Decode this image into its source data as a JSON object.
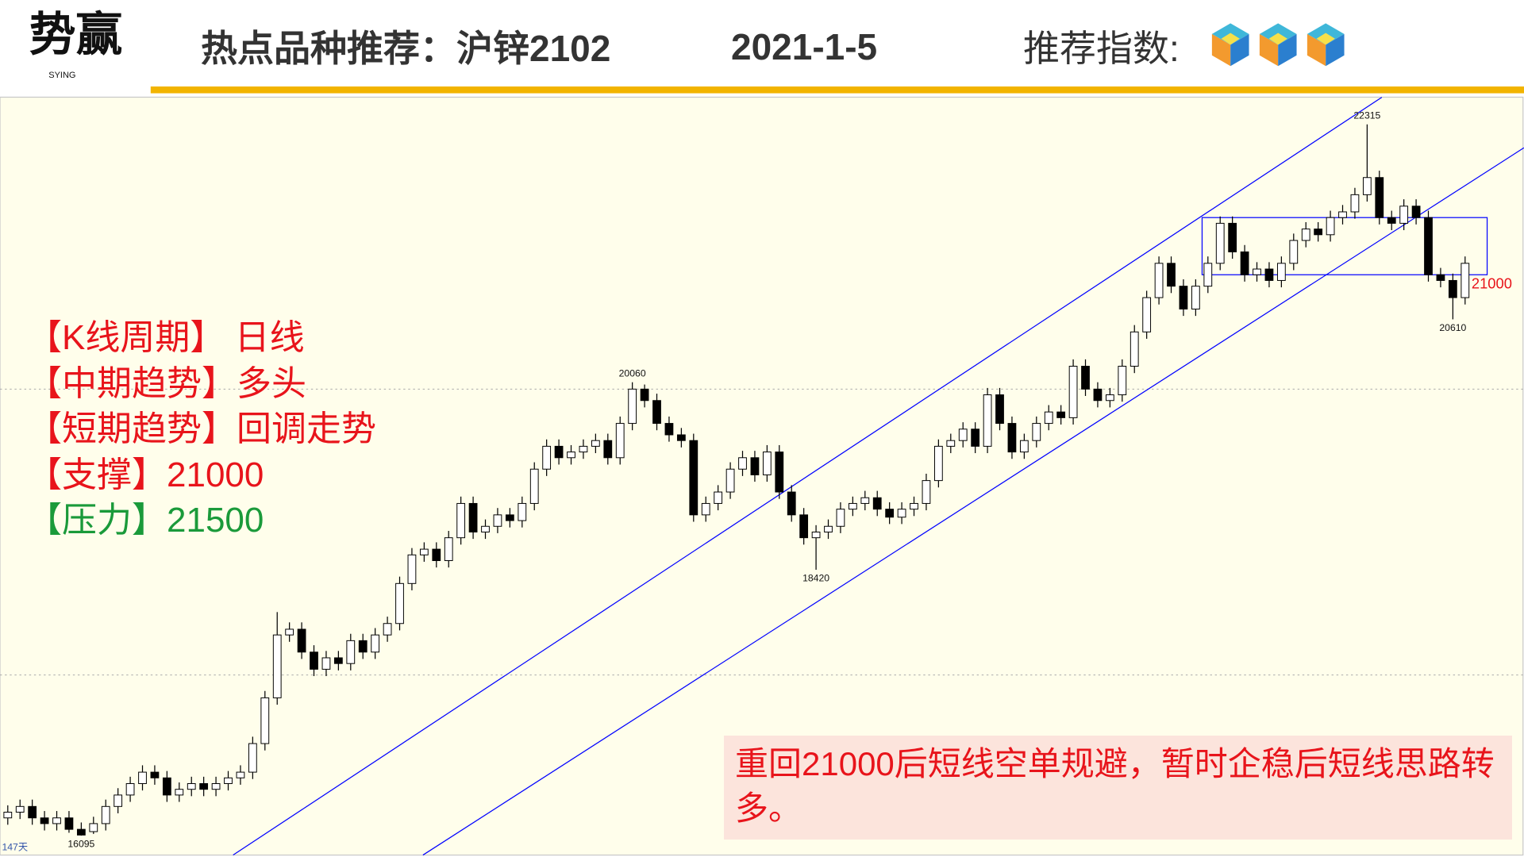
{
  "header": {
    "logo": "势赢",
    "logo_sub": "SYING",
    "title": "热点品种推荐：沪锌2102",
    "date": "2021-1-5",
    "rating_label": "推荐指数:",
    "rating": 3
  },
  "panel": [
    "【K线周期】 日线",
    "【中期趋势】多头",
    "【短期趋势】回调走势",
    "【支撑】21000",
    "【压力】21500"
  ],
  "note": "重回21000后短线空单规避，暂时企稳后短线思路转多。",
  "chart_data": {
    "type": "candlestick",
    "period_label": "147天",
    "open": [
      16250,
      16300,
      16350,
      16250,
      16200,
      16250,
      16150,
      16130,
      16200,
      16350,
      16450,
      16550,
      16650,
      16600,
      16450,
      16500,
      16550,
      16500,
      16550,
      16600,
      16650,
      16900,
      17300,
      17850,
      17900,
      17700,
      17550,
      17650,
      17600,
      17800,
      17700,
      17850,
      17950,
      18300,
      18550,
      18600,
      18500,
      18700,
      19000,
      18750,
      18800,
      18900,
      18850,
      19000,
      19300,
      19500,
      19400,
      19450,
      19500,
      19550,
      19400,
      19700,
      20000,
      19900,
      19700,
      19600,
      19550,
      18900,
      19000,
      19100,
      19300,
      19400,
      19250,
      19450,
      19100,
      18900,
      18700,
      18750,
      18800,
      18950,
      19000,
      19050,
      18950,
      18880,
      18950,
      19000,
      19200,
      19500,
      19550,
      19650,
      19500,
      19950,
      19700,
      19450,
      19550,
      19700,
      19800,
      19750,
      20200,
      20000,
      19900,
      19950,
      20200,
      20500,
      20800,
      21100,
      20900,
      20700,
      20900,
      21100,
      21450,
      21200,
      21000,
      21050,
      20950,
      21100,
      21300,
      21400,
      21350,
      21500,
      21550,
      21700,
      21850,
      21500,
      21450,
      21600,
      21500,
      21000,
      20950,
      20800
    ],
    "high": [
      16360,
      16410,
      16410,
      16310,
      16310,
      16310,
      16210,
      16260,
      16410,
      16510,
      16610,
      16710,
      16710,
      16660,
      16560,
      16610,
      16610,
      16610,
      16660,
      16710,
      16960,
      17360,
      18050,
      17960,
      17960,
      17760,
      17710,
      17710,
      17860,
      17860,
      17910,
      18010,
      18360,
      18610,
      18660,
      18660,
      18760,
      19060,
      19060,
      18860,
      18960,
      18960,
      19060,
      19360,
      19560,
      19560,
      19510,
      19560,
      19610,
      19610,
      19760,
      20060,
      20040,
      19960,
      19760,
      19660,
      19610,
      19060,
      19160,
      19360,
      19460,
      19460,
      19510,
      19510,
      19160,
      18960,
      18810,
      18860,
      19010,
      19060,
      19110,
      19110,
      19010,
      19010,
      19060,
      19260,
      19560,
      19610,
      19710,
      19710,
      20010,
      20010,
      19760,
      19610,
      19760,
      19860,
      19860,
      20260,
      20260,
      20060,
      20010,
      20260,
      20560,
      20860,
      21160,
      21160,
      20960,
      20960,
      21160,
      21510,
      21510,
      21260,
      21110,
      21110,
      21160,
      21360,
      21460,
      21460,
      21560,
      21610,
      21760,
      22315,
      21910,
      21560,
      21660,
      21660,
      21560,
      21060,
      21010,
      21160
    ],
    "low": [
      16190,
      16240,
      16190,
      16140,
      16140,
      16120,
      16095,
      16110,
      16140,
      16290,
      16390,
      16490,
      16540,
      16390,
      16390,
      16440,
      16440,
      16440,
      16490,
      16540,
      16590,
      16840,
      17240,
      17790,
      17640,
      17490,
      17490,
      17540,
      17540,
      17640,
      17640,
      17790,
      17890,
      18240,
      18490,
      18440,
      18440,
      18640,
      18690,
      18690,
      18740,
      18790,
      18790,
      18940,
      19240,
      19340,
      19340,
      19390,
      19440,
      19340,
      19340,
      19640,
      19840,
      19640,
      19540,
      19490,
      18840,
      18840,
      18940,
      19040,
      19240,
      19190,
      19190,
      19040,
      18840,
      18640,
      18420,
      18690,
      18740,
      18890,
      18940,
      18890,
      18820,
      18820,
      18890,
      18940,
      19140,
      19440,
      19490,
      19440,
      19440,
      19640,
      19390,
      19390,
      19490,
      19640,
      19690,
      19690,
      19940,
      19840,
      19840,
      19890,
      20140,
      20440,
      20740,
      20840,
      20640,
      20640,
      20840,
      21040,
      21140,
      20940,
      20940,
      20890,
      20890,
      21040,
      21240,
      21290,
      21290,
      21440,
      21490,
      21640,
      21440,
      21390,
      21390,
      21440,
      20940,
      20890,
      20610,
      20740
    ],
    "close": [
      16300,
      16350,
      16250,
      16200,
      16250,
      16150,
      16100,
      16200,
      16350,
      16450,
      16550,
      16650,
      16600,
      16450,
      16500,
      16550,
      16500,
      16550,
      16600,
      16650,
      16900,
      17300,
      17850,
      17900,
      17700,
      17550,
      17650,
      17600,
      17800,
      17700,
      17850,
      17950,
      18300,
      18550,
      18600,
      18500,
      18700,
      19000,
      18750,
      18800,
      18900,
      18850,
      19000,
      19300,
      19500,
      19400,
      19450,
      19500,
      19550,
      19400,
      19700,
      20000,
      19900,
      19700,
      19600,
      19550,
      18900,
      19000,
      19100,
      19300,
      19400,
      19250,
      19450,
      19100,
      18900,
      18700,
      18750,
      18800,
      18950,
      19000,
      19050,
      18950,
      18880,
      18950,
      19000,
      19200,
      19500,
      19550,
      19650,
      19500,
      19950,
      19700,
      19450,
      19550,
      19700,
      19800,
      19750,
      20200,
      20000,
      19900,
      19950,
      20200,
      20500,
      20800,
      21100,
      20900,
      20700,
      20900,
      21100,
      21450,
      21200,
      21000,
      21050,
      20950,
      21100,
      21300,
      21400,
      21350,
      21500,
      21550,
      21700,
      21850,
      21500,
      21450,
      21600,
      21500,
      21000,
      20950,
      20800,
      21100
    ],
    "ylim": [
      15925,
      22553
    ],
    "yticks": [
      17500,
      20000
    ],
    "grid": true,
    "up_color": "#ffffff",
    "down_color": "#000000",
    "box": {
      "low": 21000,
      "high": 21500,
      "color": "#0000ff"
    },
    "trendlines": [
      [
        [
          18.4,
          15925
        ],
        [
          112.2,
          22552
        ]
      ],
      [
        [
          33.9,
          15925
        ],
        [
          123.8,
          22110
        ]
      ]
    ],
    "trendline_color": "#0000ff"
  }
}
